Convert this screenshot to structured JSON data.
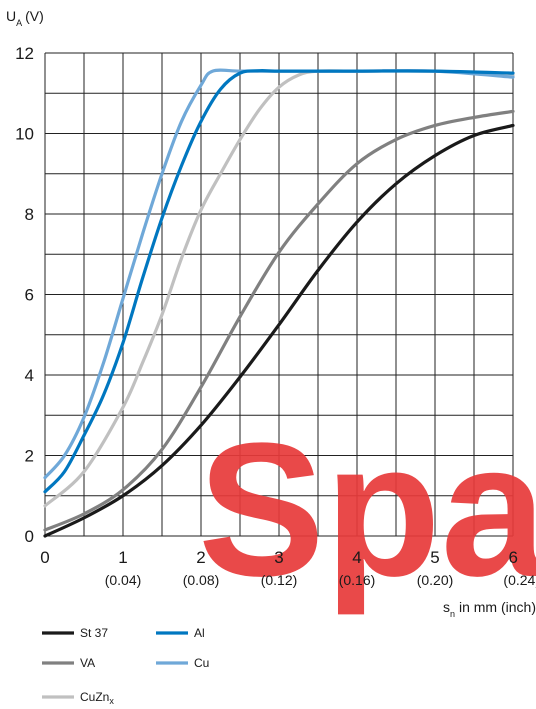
{
  "chart_data": {
    "type": "line",
    "y_label_main": "U",
    "y_label_sub": "A",
    "y_label_unit": "(V)",
    "x_label_main": "s",
    "x_label_sub": "n",
    "x_label_rest": "in mm (inch)",
    "xlim": [
      0,
      6
    ],
    "ylim": [
      0,
      12
    ],
    "grid": true,
    "x_ticks": [
      {
        "value": 0,
        "label": "0",
        "sub": ""
      },
      {
        "value": 1,
        "label": "1",
        "sub": "(0.04)"
      },
      {
        "value": 2,
        "label": "2",
        "sub": "(0.08)"
      },
      {
        "value": 3,
        "label": "3",
        "sub": "(0.12)"
      },
      {
        "value": 4,
        "label": "4",
        "sub": "(0.16)"
      },
      {
        "value": 5,
        "label": "5",
        "sub": "(0.20)"
      },
      {
        "value": 6,
        "label": "6",
        "sub": "(0.24)"
      }
    ],
    "y_ticks": [
      {
        "value": 0,
        "label": "0"
      },
      {
        "value": 2,
        "label": "2"
      },
      {
        "value": 4,
        "label": "4"
      },
      {
        "value": 6,
        "label": "6"
      },
      {
        "value": 8,
        "label": "8"
      },
      {
        "value": 10,
        "label": "10"
      },
      {
        "value": 12,
        "label": "12"
      }
    ],
    "legend_placement": "bottom-left",
    "watermark": "Spa",
    "series": [
      {
        "name": "St 37",
        "color": "#1a1a1a",
        "points": [
          [
            0,
            0
          ],
          [
            0.5,
            0.45
          ],
          [
            1,
            1.0
          ],
          [
            1.5,
            1.75
          ],
          [
            2,
            2.75
          ],
          [
            2.5,
            3.95
          ],
          [
            3,
            5.25
          ],
          [
            3.5,
            6.6
          ],
          [
            4,
            7.8
          ],
          [
            4.5,
            8.75
          ],
          [
            5,
            9.45
          ],
          [
            5.5,
            9.95
          ],
          [
            6,
            10.2
          ]
        ]
      },
      {
        "name": "VA",
        "color": "#808080",
        "points": [
          [
            0,
            0.15
          ],
          [
            0.5,
            0.55
          ],
          [
            1,
            1.15
          ],
          [
            1.5,
            2.15
          ],
          [
            2,
            3.7
          ],
          [
            2.5,
            5.45
          ],
          [
            3,
            7.05
          ],
          [
            3.5,
            8.25
          ],
          [
            4,
            9.25
          ],
          [
            4.5,
            9.85
          ],
          [
            5,
            10.2
          ],
          [
            5.5,
            10.4
          ],
          [
            6,
            10.55
          ]
        ]
      },
      {
        "name": "Al",
        "color": "#0077c0",
        "points": [
          [
            0,
            1.1
          ],
          [
            0.25,
            1.6
          ],
          [
            0.5,
            2.5
          ],
          [
            0.75,
            3.5
          ],
          [
            1,
            4.8
          ],
          [
            1.25,
            6.4
          ],
          [
            1.5,
            7.9
          ],
          [
            1.75,
            9.2
          ],
          [
            2,
            10.3
          ],
          [
            2.25,
            11.1
          ],
          [
            2.5,
            11.5
          ],
          [
            2.75,
            11.56
          ],
          [
            3,
            11.55
          ],
          [
            4,
            11.55
          ],
          [
            5,
            11.55
          ],
          [
            6,
            11.5
          ]
        ]
      },
      {
        "name": "Cu",
        "color": "#6fa8d8",
        "points": [
          [
            0,
            1.45
          ],
          [
            0.25,
            2.0
          ],
          [
            0.5,
            2.95
          ],
          [
            0.75,
            4.3
          ],
          [
            1,
            5.9
          ],
          [
            1.25,
            7.5
          ],
          [
            1.5,
            9.0
          ],
          [
            1.75,
            10.3
          ],
          [
            2,
            11.2
          ],
          [
            2.15,
            11.55
          ],
          [
            2.5,
            11.55
          ],
          [
            3,
            11.55
          ],
          [
            4,
            11.55
          ],
          [
            5,
            11.55
          ],
          [
            6,
            11.4
          ]
        ]
      },
      {
        "name": "CuZn",
        "name_sub": "x",
        "color": "#c0c0c0",
        "points": [
          [
            0,
            0.75
          ],
          [
            0.5,
            1.6
          ],
          [
            1,
            3.2
          ],
          [
            1.25,
            4.3
          ],
          [
            1.5,
            5.5
          ],
          [
            1.75,
            6.9
          ],
          [
            2,
            8.1
          ],
          [
            2.25,
            9.0
          ],
          [
            2.5,
            9.85
          ],
          [
            2.75,
            10.6
          ],
          [
            3,
            11.15
          ],
          [
            3.25,
            11.45
          ],
          [
            3.5,
            11.55
          ],
          [
            4,
            11.55
          ],
          [
            5,
            11.55
          ],
          [
            6,
            11.45
          ]
        ]
      }
    ]
  }
}
